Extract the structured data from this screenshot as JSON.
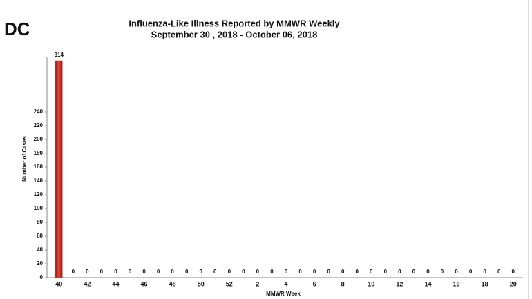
{
  "header": {
    "label": "DC"
  },
  "chart_data": {
    "type": "bar",
    "title": "Influenza-Like Illness Reported by MMWR Weekly",
    "subtitle": "September 30 , 2018 - October 06, 2018",
    "x_label": "MMWR Week",
    "y_label": "Number of Cases",
    "categories": [
      "40",
      null,
      "42",
      null,
      "44",
      null,
      "46",
      null,
      "48",
      null,
      "50",
      null,
      "52",
      null,
      "2",
      null,
      "4",
      null,
      "6",
      null,
      "8",
      null,
      "10",
      null,
      "12",
      null,
      "14",
      null,
      "16",
      null,
      "18",
      null,
      "20"
    ],
    "values": [
      314,
      0,
      0,
      0,
      0,
      0,
      0,
      0,
      0,
      0,
      0,
      0,
      0,
      0,
      0,
      0,
      0,
      0,
      0,
      0,
      0,
      0,
      0,
      0,
      0,
      0,
      0,
      0,
      0,
      0,
      0,
      0,
      0
    ],
    "color": "#c8312a",
    "ylim": [
      0,
      320
    ],
    "yticks": [
      0,
      20,
      40,
      60,
      80,
      100,
      120,
      140,
      160,
      180,
      200,
      220,
      240
    ],
    "grid": false
  }
}
